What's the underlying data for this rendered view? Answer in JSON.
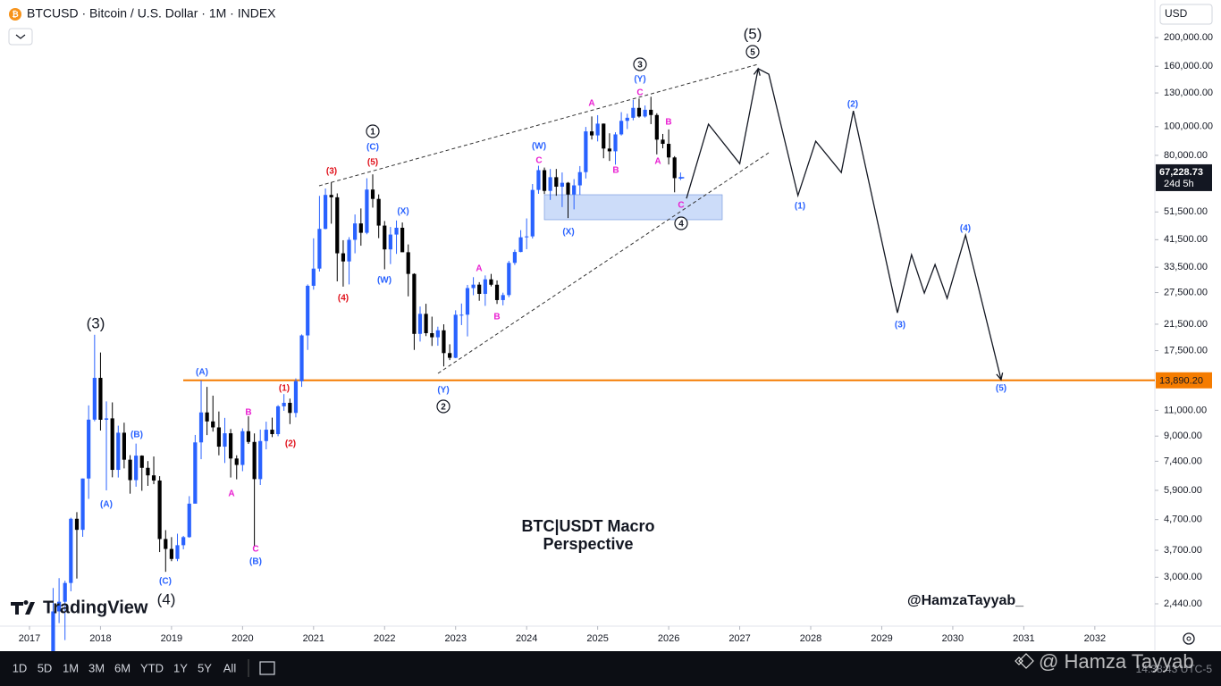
{
  "chart_data": {
    "type": "candlestick",
    "title": "BTCUSD · Bitcoin / U.S. Dollar · 1M · INDEX",
    "currency": "USD",
    "log_scale": true,
    "up_color": "#2962ff",
    "down_color": "#000000",
    "xlim": [
      2016.585,
      2032.82
    ],
    "xticks": [
      2017,
      2018,
      2019,
      2020,
      2021,
      2022,
      2023,
      2024,
      2025,
      2026,
      2027,
      2028,
      2029,
      2030,
      2031,
      2032
    ],
    "ylim": [
      2065,
      268000
    ],
    "yticks": [
      {
        "value": 200000,
        "label": "200,000.00"
      },
      {
        "value": 160000,
        "label": "160,000.00"
      },
      {
        "value": 130000,
        "label": "130,000.00"
      },
      {
        "value": 100000,
        "label": "100,000.00"
      },
      {
        "value": 80000,
        "label": "80,000.00"
      },
      {
        "value": 51500,
        "label": "51,500.00"
      },
      {
        "value": 41500,
        "label": "41,500.00"
      },
      {
        "value": 33500,
        "label": "33,500.00"
      },
      {
        "value": 27500,
        "label": "27,500.00"
      },
      {
        "value": 21500,
        "label": "21,500.00"
      },
      {
        "value": 17500,
        "label": "17,500.00"
      },
      {
        "value": 11000,
        "label": "11,000.00"
      },
      {
        "value": 9000,
        "label": "9,000.00"
      },
      {
        "value": 7400,
        "label": "7,400.00"
      },
      {
        "value": 5900,
        "label": "5,900.00"
      },
      {
        "value": 4700,
        "label": "4,700.00"
      },
      {
        "value": 3700,
        "label": "3,700.00"
      },
      {
        "value": 3000,
        "label": "3,000.00"
      },
      {
        "value": 2440,
        "label": "2,440.00"
      }
    ],
    "candles": {
      "x": [
        2017.333,
        2017.417,
        2017.5,
        2017.583,
        2017.667,
        2017.75,
        2017.833,
        2017.917,
        2018,
        2018.083,
        2018.167,
        2018.25,
        2018.333,
        2018.417,
        2018.5,
        2018.583,
        2018.667,
        2018.75,
        2018.833,
        2018.917,
        2019,
        2019.083,
        2019.167,
        2019.25,
        2019.333,
        2019.417,
        2019.5,
        2019.583,
        2019.667,
        2019.75,
        2019.833,
        2019.917,
        2020,
        2020.083,
        2020.167,
        2020.25,
        2020.333,
        2020.417,
        2020.5,
        2020.583,
        2020.667,
        2020.75,
        2020.833,
        2020.917,
        2021,
        2021.083,
        2021.167,
        2021.25,
        2021.333,
        2021.417,
        2021.5,
        2021.583,
        2021.667,
        2021.75,
        2021.833,
        2021.917,
        2022,
        2022.083,
        2022.167,
        2022.25,
        2022.333,
        2022.417,
        2022.5,
        2022.583,
        2022.667,
        2022.75,
        2022.833,
        2022.917,
        2023,
        2023.083,
        2023.167,
        2023.25,
        2023.333,
        2023.417,
        2023.5,
        2023.583,
        2023.667,
        2023.75,
        2023.833,
        2023.917,
        2024,
        2024.083,
        2024.167,
        2024.25,
        2024.333,
        2024.417,
        2024.5,
        2024.583,
        2024.667,
        2024.75,
        2024.833,
        2024.917,
        2025,
        2025.083,
        2025.167,
        2025.25,
        2025.333,
        2025.417,
        2025.5,
        2025.583,
        2025.667,
        2025.75,
        2025.833,
        2025.917,
        2026,
        2026.083,
        2026.167
      ],
      "open": [
        1350,
        2300,
        2480,
        2870,
        4730,
        4340,
        6470,
        10230,
        14160,
        10220,
        10330,
        6920,
        9240,
        7490,
        6390,
        7730,
        7030,
        6630,
        6370,
        4040,
        3740,
        3460,
        3850,
        4100,
        5320,
        8570,
        10820,
        10090,
        9630,
        8290,
        9200,
        7560,
        7190,
        9350,
        8600,
        6440,
        8660,
        9460,
        9140,
        11350,
        11660,
        10780,
        13800,
        19700,
        28990,
        33140,
        45140,
        58800,
        57720,
        37330,
        35040,
        41460,
        47100,
        43790,
        61300,
        57000,
        46310,
        38480,
        43190,
        45540,
        37640,
        31800,
        19940,
        23300,
        20050,
        19420,
        20500,
        17170,
        16550,
        23140,
        23150,
        28480,
        29250,
        27220,
        30480,
        29230,
        25940,
        26970,
        34650,
        37720,
        42280,
        42580,
        61130,
        71290,
        60670,
        67490,
        62680,
        64620,
        58970,
        63330,
        70210,
        96410,
        93430,
        102400,
        84350,
        82550,
        94170,
        104630,
        107170,
        115760,
        108250,
        114050,
        109500,
        90400,
        87500,
        78700,
        67000
      ],
      "high": [
        2760,
        2980,
        2920,
        4770,
        4980,
        6470,
        11430,
        19800,
        17250,
        11790,
        11700,
        9760,
        9990,
        7760,
        8490,
        7750,
        7410,
        7680,
        6590,
        4330,
        4100,
        4210,
        4140,
        5640,
        9080,
        13880,
        13200,
        12330,
        10900,
        10370,
        9510,
        7750,
        9560,
        10500,
        9190,
        9470,
        10070,
        10390,
        11450,
        12480,
        12050,
        14100,
        19860,
        29300,
        41950,
        58350,
        61780,
        64850,
        59500,
        41330,
        42320,
        50500,
        52920,
        66930,
        69000,
        59040,
        47990,
        45820,
        48190,
        47440,
        40000,
        31960,
        24670,
        25200,
        22800,
        21090,
        21480,
        18390,
        23960,
        25250,
        29190,
        31000,
        29820,
        31430,
        31800,
        30230,
        27480,
        35200,
        38420,
        44700,
        48970,
        64000,
        73780,
        72750,
        71950,
        71960,
        70020,
        65000,
        66500,
        73600,
        99800,
        108300,
        109360,
        102500,
        95000,
        95750,
        111980,
        110600,
        123200,
        124450,
        117900,
        126200,
        111000,
        94500,
        97900,
        79500,
        70000
      ],
      "low": [
        1350,
        2100,
        1840,
        2690,
        2970,
        4110,
        5520,
        10100,
        9400,
        5900,
        6530,
        6520,
        7000,
        5750,
        6070,
        5880,
        6110,
        6190,
        3650,
        3130,
        3400,
        3400,
        3730,
        4080,
        5330,
        7520,
        9070,
        9320,
        7750,
        7300,
        6520,
        6430,
        6850,
        8470,
        3800,
        6150,
        8120,
        8930,
        8990,
        10960,
        9880,
        10410,
        13200,
        17600,
        28130,
        32400,
        45000,
        47000,
        30000,
        28800,
        29300,
        37330,
        39600,
        43290,
        53260,
        42000,
        32950,
        34320,
        37160,
        37700,
        26700,
        17600,
        18780,
        19600,
        18150,
        18180,
        15480,
        16260,
        16500,
        21350,
        19550,
        26940,
        25800,
        24800,
        28860,
        25170,
        24900,
        26540,
        34100,
        37630,
        38550,
        41880,
        59320,
        59200,
        56550,
        58430,
        53500,
        49100,
        52550,
        58900,
        66830,
        90500,
        89160,
        78200,
        76600,
        74400,
        93350,
        98200,
        105100,
        107300,
        107300,
        102000,
        80600,
        84500,
        74500,
        60000,
        66000
      ],
      "close": [
        2300,
        2480,
        2870,
        4730,
        4340,
        6470,
        10230,
        14160,
        10220,
        10330,
        6920,
        9240,
        7490,
        6390,
        7730,
        7030,
        6630,
        6370,
        4040,
        3740,
        3460,
        3850,
        4100,
        5320,
        8570,
        10820,
        10090,
        9630,
        8290,
        9200,
        7560,
        7190,
        9350,
        8600,
        6440,
        8660,
        9460,
        9140,
        11350,
        11660,
        10780,
        13800,
        19700,
        28990,
        33140,
        45140,
        58800,
        57720,
        37330,
        35040,
        41460,
        47100,
        43790,
        61300,
        57000,
        46310,
        38480,
        43190,
        45540,
        37640,
        31800,
        19940,
        23300,
        20050,
        19420,
        20500,
        17170,
        16550,
        23140,
        23150,
        28480,
        29250,
        27220,
        30480,
        29230,
        25940,
        26970,
        34650,
        37720,
        42280,
        42580,
        61130,
        71290,
        60670,
        67490,
        62680,
        64620,
        58970,
        63330,
        70210,
        96410,
        93430,
        102400,
        84350,
        82550,
        94170,
        104630,
        107170,
        115760,
        108250,
        114050,
        109500,
        90400,
        87500,
        78700,
        67000,
        67228.73
      ]
    },
    "last_price": {
      "value": 67228.73,
      "label": "67,228.73",
      "countdown": "24d 5h"
    },
    "hline": {
      "value": 13890.2,
      "label": "13,890.20",
      "color": "#f57c00"
    },
    "forecast": {
      "x": [
        2026.25,
        2026.56,
        2027.0,
        2027.26,
        2027.41,
        2027.82,
        2028.07,
        2028.43,
        2028.6,
        2029.22,
        2029.42,
        2029.6,
        2029.75,
        2029.92,
        2030.18,
        2030.68
      ],
      "values": [
        57200,
        102000,
        75000,
        157000,
        150400,
        58500,
        89300,
        70000,
        113100,
        23500,
        36900,
        27400,
        34200,
        26300,
        43000,
        13960
      ]
    },
    "annotations": [
      "(5)",
      "5",
      "3",
      "(Y)",
      "C",
      "A",
      "B",
      "A",
      "B",
      "C",
      "4",
      "(W)",
      "C",
      "(X)",
      "1",
      "(C)",
      "(5)",
      "(3)",
      "(X)",
      "(W)",
      "(4)",
      "A",
      "B",
      "(Y)",
      "2",
      "(3)",
      "(A)",
      "(1)",
      "(2)",
      "B",
      "(B)",
      "(A)",
      "A",
      "C",
      "(B)",
      "(C)",
      "(4)",
      "(2)",
      "(1)",
      "(4)",
      "(3)",
      "(5)"
    ],
    "caption": [
      "BTC|USDT Macro",
      "Perspective"
    ],
    "author": "@HamzaTayyab_",
    "brand": "TradingView"
  },
  "toolbar": {
    "ranges": [
      "1D",
      "5D",
      "1M",
      "3M",
      "6M",
      "YTD",
      "1Y",
      "5Y",
      "All"
    ],
    "watermark": "@ Hamza Tayyab",
    "clock": "14:38:43 UTC-5"
  }
}
